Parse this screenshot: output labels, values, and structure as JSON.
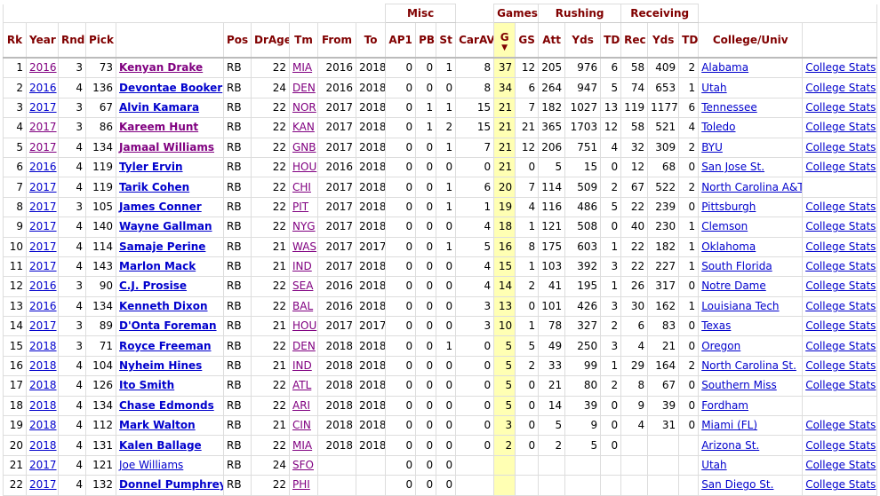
{
  "header": {
    "groups": {
      "misc": "Misc",
      "games": "Games",
      "rushing": "Rushing",
      "receiving": "Receiving"
    },
    "cols": {
      "rk": "Rk",
      "year": "Year",
      "rnd": "Rnd",
      "pick": "Pick",
      "player": "",
      "pos": "Pos",
      "drage": "DrAge",
      "tm": "Tm",
      "from": "From",
      "to": "To",
      "ap1": "AP1",
      "pb": "PB",
      "st": "St",
      "carav": "CarAV",
      "g": "G",
      "gs": "GS",
      "att": "Att",
      "ryds": "Yds",
      "rtd": "TD",
      "rec": "Rec",
      "cyds": "Yds",
      "ctd": "TD",
      "college": "College/Univ",
      "link": ""
    },
    "sort_arrow": "▼"
  },
  "rows": [
    {
      "rk": "1",
      "year": "2016",
      "rnd": "3",
      "pick": "73",
      "player": "Kenyan Drake",
      "pos": "RB",
      "drage": "22",
      "tm": "MIA",
      "from": "2016",
      "to": "2018",
      "ap1": "0",
      "pb": "0",
      "st": "1",
      "carav": "8",
      "g": "37",
      "gs": "12",
      "att": "205",
      "ryds": "976",
      "rtd": "6",
      "rec": "58",
      "cyds": "409",
      "ctd": "2",
      "college": "Alabama",
      "link": "College Stats"
    },
    {
      "rk": "2",
      "year": "2016",
      "rnd": "4",
      "pick": "136",
      "player": "Devontae Booker",
      "pos": "RB",
      "drage": "24",
      "tm": "DEN",
      "from": "2016",
      "to": "2018",
      "ap1": "0",
      "pb": "0",
      "st": "0",
      "carav": "8",
      "g": "34",
      "gs": "6",
      "att": "264",
      "ryds": "947",
      "rtd": "5",
      "rec": "74",
      "cyds": "653",
      "ctd": "1",
      "college": "Utah",
      "link": "College Stats"
    },
    {
      "rk": "3",
      "year": "2017",
      "rnd": "3",
      "pick": "67",
      "player": "Alvin Kamara",
      "pos": "RB",
      "drage": "22",
      "tm": "NOR",
      "from": "2017",
      "to": "2018",
      "ap1": "0",
      "pb": "1",
      "st": "1",
      "carav": "15",
      "g": "21",
      "gs": "7",
      "att": "182",
      "ryds": "1027",
      "rtd": "13",
      "rec": "119",
      "cyds": "1177",
      "ctd": "6",
      "college": "Tennessee",
      "link": "College Stats"
    },
    {
      "rk": "4",
      "year": "2017",
      "rnd": "3",
      "pick": "86",
      "player": "Kareem Hunt",
      "pos": "RB",
      "drage": "22",
      "tm": "KAN",
      "from": "2017",
      "to": "2018",
      "ap1": "0",
      "pb": "1",
      "st": "2",
      "carav": "15",
      "g": "21",
      "gs": "21",
      "att": "365",
      "ryds": "1703",
      "rtd": "12",
      "rec": "58",
      "cyds": "521",
      "ctd": "4",
      "college": "Toledo",
      "link": "College Stats"
    },
    {
      "rk": "5",
      "year": "2017",
      "rnd": "4",
      "pick": "134",
      "player": "Jamaal Williams",
      "pos": "RB",
      "drage": "22",
      "tm": "GNB",
      "from": "2017",
      "to": "2018",
      "ap1": "0",
      "pb": "0",
      "st": "1",
      "carav": "7",
      "g": "21",
      "gs": "12",
      "att": "206",
      "ryds": "751",
      "rtd": "4",
      "rec": "32",
      "cyds": "309",
      "ctd": "2",
      "college": "BYU",
      "link": "College Stats"
    },
    {
      "rk": "6",
      "year": "2016",
      "rnd": "4",
      "pick": "119",
      "player": "Tyler Ervin",
      "pos": "RB",
      "drage": "22",
      "tm": "HOU",
      "from": "2016",
      "to": "2018",
      "ap1": "0",
      "pb": "0",
      "st": "0",
      "carav": "0",
      "g": "21",
      "gs": "0",
      "att": "5",
      "ryds": "15",
      "rtd": "0",
      "rec": "12",
      "cyds": "68",
      "ctd": "0",
      "college": "San Jose St.",
      "link": "College Stats"
    },
    {
      "rk": "7",
      "year": "2017",
      "rnd": "4",
      "pick": "119",
      "player": "Tarik Cohen",
      "pos": "RB",
      "drage": "22",
      "tm": "CHI",
      "from": "2017",
      "to": "2018",
      "ap1": "0",
      "pb": "0",
      "st": "1",
      "carav": "6",
      "g": "20",
      "gs": "7",
      "att": "114",
      "ryds": "509",
      "rtd": "2",
      "rec": "67",
      "cyds": "522",
      "ctd": "2",
      "college": "North Carolina A&T",
      "link": ""
    },
    {
      "rk": "8",
      "year": "2017",
      "rnd": "3",
      "pick": "105",
      "player": "James Conner",
      "pos": "RB",
      "drage": "22",
      "tm": "PIT",
      "from": "2017",
      "to": "2018",
      "ap1": "0",
      "pb": "0",
      "st": "1",
      "carav": "1",
      "g": "19",
      "gs": "4",
      "att": "116",
      "ryds": "486",
      "rtd": "5",
      "rec": "22",
      "cyds": "239",
      "ctd": "0",
      "college": "Pittsburgh",
      "link": "College Stats"
    },
    {
      "rk": "9",
      "year": "2017",
      "rnd": "4",
      "pick": "140",
      "player": "Wayne Gallman",
      "pos": "RB",
      "drage": "22",
      "tm": "NYG",
      "from": "2017",
      "to": "2018",
      "ap1": "0",
      "pb": "0",
      "st": "0",
      "carav": "4",
      "g": "18",
      "gs": "1",
      "att": "121",
      "ryds": "508",
      "rtd": "0",
      "rec": "40",
      "cyds": "230",
      "ctd": "1",
      "college": "Clemson",
      "link": "College Stats"
    },
    {
      "rk": "10",
      "year": "2017",
      "rnd": "4",
      "pick": "114",
      "player": "Samaje Perine",
      "pos": "RB",
      "drage": "21",
      "tm": "WAS",
      "from": "2017",
      "to": "2017",
      "ap1": "0",
      "pb": "0",
      "st": "1",
      "carav": "5",
      "g": "16",
      "gs": "8",
      "att": "175",
      "ryds": "603",
      "rtd": "1",
      "rec": "22",
      "cyds": "182",
      "ctd": "1",
      "college": "Oklahoma",
      "link": "College Stats"
    },
    {
      "rk": "11",
      "year": "2017",
      "rnd": "4",
      "pick": "143",
      "player": "Marlon Mack",
      "pos": "RB",
      "drage": "21",
      "tm": "IND",
      "from": "2017",
      "to": "2018",
      "ap1": "0",
      "pb": "0",
      "st": "0",
      "carav": "4",
      "g": "15",
      "gs": "1",
      "att": "103",
      "ryds": "392",
      "rtd": "3",
      "rec": "22",
      "cyds": "227",
      "ctd": "1",
      "college": "South Florida",
      "link": "College Stats"
    },
    {
      "rk": "12",
      "year": "2016",
      "rnd": "3",
      "pick": "90",
      "player": "C.J. Prosise",
      "pos": "RB",
      "drage": "22",
      "tm": "SEA",
      "from": "2016",
      "to": "2018",
      "ap1": "0",
      "pb": "0",
      "st": "0",
      "carav": "4",
      "g": "14",
      "gs": "2",
      "att": "41",
      "ryds": "195",
      "rtd": "1",
      "rec": "26",
      "cyds": "317",
      "ctd": "0",
      "college": "Notre Dame",
      "link": "College Stats"
    },
    {
      "rk": "13",
      "year": "2016",
      "rnd": "4",
      "pick": "134",
      "player": "Kenneth Dixon",
      "pos": "RB",
      "drage": "22",
      "tm": "BAL",
      "from": "2016",
      "to": "2018",
      "ap1": "0",
      "pb": "0",
      "st": "0",
      "carav": "3",
      "g": "13",
      "gs": "0",
      "att": "101",
      "ryds": "426",
      "rtd": "3",
      "rec": "30",
      "cyds": "162",
      "ctd": "1",
      "college": "Louisiana Tech",
      "link": "College Stats"
    },
    {
      "rk": "14",
      "year": "2017",
      "rnd": "3",
      "pick": "89",
      "player": "D'Onta Foreman",
      "pos": "RB",
      "drage": "21",
      "tm": "HOU",
      "from": "2017",
      "to": "2017",
      "ap1": "0",
      "pb": "0",
      "st": "0",
      "carav": "3",
      "g": "10",
      "gs": "1",
      "att": "78",
      "ryds": "327",
      "rtd": "2",
      "rec": "6",
      "cyds": "83",
      "ctd": "0",
      "college": "Texas",
      "link": "College Stats"
    },
    {
      "rk": "15",
      "year": "2018",
      "rnd": "3",
      "pick": "71",
      "player": "Royce Freeman",
      "pos": "RB",
      "drage": "22",
      "tm": "DEN",
      "from": "2018",
      "to": "2018",
      "ap1": "0",
      "pb": "0",
      "st": "1",
      "carav": "0",
      "g": "5",
      "gs": "5",
      "att": "49",
      "ryds": "250",
      "rtd": "3",
      "rec": "4",
      "cyds": "21",
      "ctd": "0",
      "college": "Oregon",
      "link": "College Stats"
    },
    {
      "rk": "16",
      "year": "2018",
      "rnd": "4",
      "pick": "104",
      "player": "Nyheim Hines",
      "pos": "RB",
      "drage": "21",
      "tm": "IND",
      "from": "2018",
      "to": "2018",
      "ap1": "0",
      "pb": "0",
      "st": "0",
      "carav": "0",
      "g": "5",
      "gs": "2",
      "att": "33",
      "ryds": "99",
      "rtd": "1",
      "rec": "29",
      "cyds": "164",
      "ctd": "2",
      "college": "North Carolina St.",
      "link": "College Stats"
    },
    {
      "rk": "17",
      "year": "2018",
      "rnd": "4",
      "pick": "126",
      "player": "Ito Smith",
      "pos": "RB",
      "drage": "22",
      "tm": "ATL",
      "from": "2018",
      "to": "2018",
      "ap1": "0",
      "pb": "0",
      "st": "0",
      "carav": "0",
      "g": "5",
      "gs": "0",
      "att": "21",
      "ryds": "80",
      "rtd": "2",
      "rec": "8",
      "cyds": "67",
      "ctd": "0",
      "college": "Southern Miss",
      "link": "College Stats"
    },
    {
      "rk": "18",
      "year": "2018",
      "rnd": "4",
      "pick": "134",
      "player": "Chase Edmonds",
      "pos": "RB",
      "drage": "22",
      "tm": "ARI",
      "from": "2018",
      "to": "2018",
      "ap1": "0",
      "pb": "0",
      "st": "0",
      "carav": "0",
      "g": "5",
      "gs": "0",
      "att": "14",
      "ryds": "39",
      "rtd": "0",
      "rec": "9",
      "cyds": "39",
      "ctd": "0",
      "college": "Fordham",
      "link": ""
    },
    {
      "rk": "19",
      "year": "2018",
      "rnd": "4",
      "pick": "112",
      "player": "Mark Walton",
      "pos": "RB",
      "drage": "21",
      "tm": "CIN",
      "from": "2018",
      "to": "2018",
      "ap1": "0",
      "pb": "0",
      "st": "0",
      "carav": "0",
      "g": "3",
      "gs": "0",
      "att": "5",
      "ryds": "9",
      "rtd": "0",
      "rec": "4",
      "cyds": "31",
      "ctd": "0",
      "college": "Miami (FL)",
      "link": "College Stats"
    },
    {
      "rk": "20",
      "year": "2018",
      "rnd": "4",
      "pick": "131",
      "player": "Kalen Ballage",
      "pos": "RB",
      "drage": "22",
      "tm": "MIA",
      "from": "2018",
      "to": "2018",
      "ap1": "0",
      "pb": "0",
      "st": "0",
      "carav": "0",
      "g": "2",
      "gs": "0",
      "att": "2",
      "ryds": "5",
      "rtd": "0",
      "rec": "",
      "cyds": "",
      "ctd": "",
      "college": "Arizona St.",
      "link": "College Stats"
    },
    {
      "rk": "21",
      "year": "2017",
      "rnd": "4",
      "pick": "121",
      "player": "Joe Williams",
      "pos": "RB",
      "drage": "24",
      "tm": "SFO",
      "from": "",
      "to": "",
      "ap1": "0",
      "pb": "0",
      "st": "0",
      "carav": "",
      "g": "",
      "gs": "",
      "att": "",
      "ryds": "",
      "rtd": "",
      "rec": "",
      "cyds": "",
      "ctd": "",
      "college": "Utah",
      "link": "College Stats"
    },
    {
      "rk": "22",
      "year": "2017",
      "rnd": "4",
      "pick": "132",
      "player": "Donnel Pumphrey",
      "pos": "RB",
      "drage": "22",
      "tm": "PHI",
      "from": "",
      "to": "",
      "ap1": "0",
      "pb": "0",
      "st": "0",
      "carav": "",
      "g": "",
      "gs": "",
      "att": "",
      "ryds": "",
      "rtd": "",
      "rec": "",
      "cyds": "",
      "ctd": "",
      "college": "San Diego St.",
      "link": "College Stats"
    }
  ],
  "style": {
    "visited_rows": [
      0,
      3,
      4
    ],
    "bold_player_rows_excluded": [
      20
    ]
  },
  "colors": {
    "header": "#800000",
    "link": "#0000cc",
    "visited": "#800080",
    "sort_col": "#ffffb3",
    "border": "#dddddd"
  }
}
